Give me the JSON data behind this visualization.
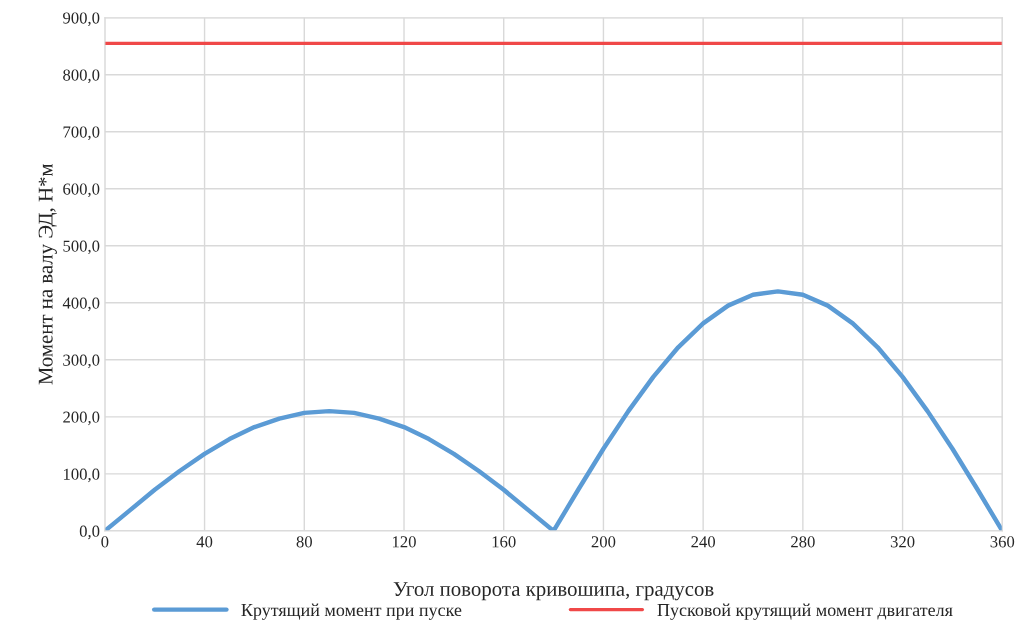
{
  "chart_data": {
    "type": "line",
    "xlabel": "Угол поворота кривошипа, градусов",
    "ylabel": "Момент на валу ЭД, Н*м",
    "series": [
      {
        "name": "Крутящий момент при пуске",
        "color": "#5b9bd5",
        "x": [
          0,
          10,
          20,
          30,
          40,
          50,
          60,
          70,
          80,
          90,
          100,
          110,
          120,
          130,
          140,
          150,
          160,
          170,
          180,
          190,
          200,
          210,
          220,
          230,
          240,
          250,
          260,
          270,
          280,
          290,
          300,
          310,
          320,
          330,
          340,
          350,
          360
        ],
        "values": [
          0,
          36,
          72,
          105,
          135,
          161,
          182,
          197,
          207,
          210,
          207,
          197,
          182,
          161,
          135,
          105,
          72,
          36,
          0,
          73,
          144,
          210,
          270,
          322,
          364,
          395,
          414,
          420,
          414,
          395,
          364,
          322,
          270,
          210,
          144,
          73,
          0
        ]
      },
      {
        "name": "Пусковой крутящий момент двигателя",
        "color": "#f04848",
        "x": [
          0,
          360
        ],
        "values": [
          855,
          855
        ]
      }
    ],
    "xlim": [
      0,
      360
    ],
    "xticks": [
      0,
      40,
      80,
      120,
      160,
      200,
      240,
      280,
      320,
      360
    ],
    "ylim": [
      0,
      900
    ],
    "yticks": [
      {
        "value": 0,
        "label": "0,0"
      },
      {
        "value": 100,
        "label": "100,0"
      },
      {
        "value": 200,
        "label": "200,0"
      },
      {
        "value": 300,
        "label": "300,0"
      },
      {
        "value": 400,
        "label": "400,0"
      },
      {
        "value": 500,
        "label": "500,0"
      },
      {
        "value": 600,
        "label": "600,0"
      },
      {
        "value": 700,
        "label": "700,0"
      },
      {
        "value": 800,
        "label": "800,0"
      },
      {
        "value": 900,
        "label": "900,0"
      }
    ],
    "grid": true,
    "legend": "bottom",
    "marker": "none",
    "line_style": "solid"
  }
}
